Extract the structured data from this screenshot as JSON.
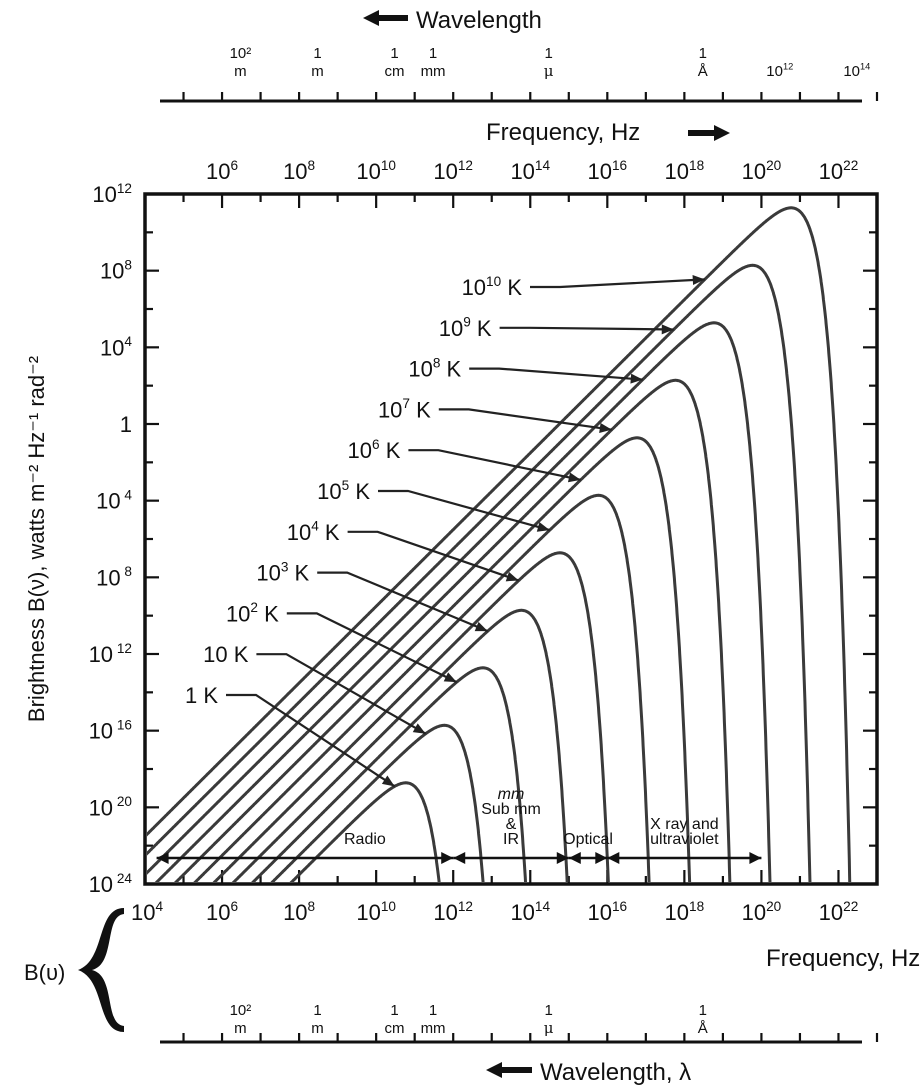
{
  "chart_data": {
    "type": "line",
    "title": "",
    "xlabel": "Frequency, Hz",
    "ylabel": "Brightness B(ν), watts m⁻² Hz⁻¹ rad⁻²",
    "xscale": "log",
    "yscale": "log",
    "xlim": [
      10000,
      1e+23
    ],
    "ylim": [
      1e-24,
      1000000000000.0
    ],
    "grid": false,
    "x_tick_labels": [
      {
        "base": "10",
        "exp": "4"
      },
      {
        "base": "10",
        "exp": "6"
      },
      {
        "base": "10",
        "exp": "8"
      },
      {
        "base": "10",
        "exp": "10"
      },
      {
        "base": "10",
        "exp": "12"
      },
      {
        "base": "10",
        "exp": "14"
      },
      {
        "base": "10",
        "exp": "16"
      },
      {
        "base": "10",
        "exp": "18"
      },
      {
        "base": "10",
        "exp": "20"
      },
      {
        "base": "10",
        "exp": "22"
      }
    ],
    "y_tick_labels": [
      {
        "base": "10",
        "exp": "12"
      },
      {
        "base": "10",
        "exp": "8"
      },
      {
        "base": "10",
        "exp": "4"
      },
      {
        "base": "1",
        "exp": ""
      },
      {
        "base": "10",
        "exp": " 4"
      },
      {
        "base": "10",
        "exp": " 8"
      },
      {
        "base": "10",
        "exp": " 12"
      },
      {
        "base": "10",
        "exp": " 16"
      },
      {
        "base": "10",
        "exp": " 20"
      },
      {
        "base": "10",
        "exp": " 24"
      }
    ],
    "series": [
      {
        "name": "1 K",
        "label": {
          "base": "1",
          "exp": "",
          "unit": " K"
        },
        "temperature_K": 1,
        "peak": {
          "x": 59000000000.0,
          "y": 4.2e-21
        }
      },
      {
        "name": "10 K",
        "label": {
          "base": "10",
          "exp": "",
          "unit": " K"
        },
        "temperature_K": 10,
        "peak": {
          "x": 590000000000.0,
          "y": 4.2e-18
        }
      },
      {
        "name": "10² K",
        "label": {
          "base": "10",
          "exp": "2",
          "unit": " K"
        },
        "temperature_K": 100,
        "peak": {
          "x": 5900000000000.0,
          "y": 4.2e-15
        }
      },
      {
        "name": "10³ K",
        "label": {
          "base": "10",
          "exp": "3",
          "unit": " K"
        },
        "temperature_K": 1000,
        "peak": {
          "x": 59000000000000.0,
          "y": 4.2e-12
        }
      },
      {
        "name": "10⁴ K",
        "label": {
          "base": "10",
          "exp": "4",
          "unit": " K"
        },
        "temperature_K": 10000,
        "peak": {
          "x": 590000000000000.0,
          "y": 4.2e-09
        }
      },
      {
        "name": "10⁵ K",
        "label": {
          "base": "10",
          "exp": "5",
          "unit": " K"
        },
        "temperature_K": 100000,
        "peak": {
          "x": 5900000000000000.0,
          "y": 4.2e-06
        }
      },
      {
        "name": "10⁶ K",
        "label": {
          "base": "10",
          "exp": "6",
          "unit": " K"
        },
        "temperature_K": 1000000,
        "peak": {
          "x": 5.9e+16,
          "y": 0.0042
        }
      },
      {
        "name": "10⁷ K",
        "label": {
          "base": "10",
          "exp": "7",
          "unit": " K"
        },
        "temperature_K": 10000000,
        "peak": {
          "x": 5.9e+17,
          "y": 4.2
        }
      },
      {
        "name": "10⁸ K",
        "label": {
          "base": "10",
          "exp": "8",
          "unit": " K"
        },
        "temperature_K": 100000000,
        "peak": {
          "x": 5.9e+18,
          "y": 4200
        }
      },
      {
        "name": "10⁹ K",
        "label": {
          "base": "10",
          "exp": "9",
          "unit": " K"
        },
        "temperature_K": 1000000000,
        "peak": {
          "x": 5.9e+19,
          "y": 4200000
        }
      },
      {
        "name": "10¹⁰ K",
        "label": {
          "base": "10",
          "exp": "10",
          "unit": " K"
        },
        "temperature_K": 10000000000,
        "peak": {
          "x": 5.9e+20,
          "y": 4200000000
        }
      }
    ],
    "bands": [
      {
        "lines": [
          "Radio"
        ],
        "x_range": [
          20000.0,
          1000000000000.0
        ]
      },
      {
        "lines": [
          "mm",
          "Sub mm",
          "&",
          "IR"
        ],
        "x_range": [
          1000000000000.0,
          1000000000000000.0
        ]
      },
      {
        "lines": [
          "Optical"
        ],
        "x_range": [
          1000000000000000.0,
          1e+16
        ]
      },
      {
        "lines": [
          "X ray and",
          "ultraviolet"
        ],
        "x_range": [
          1e+16,
          1e+20
        ]
      }
    ]
  },
  "top_axis": {
    "title": "Wavelength",
    "freq_title": "Frequency, Hz",
    "wavelength_labels": [
      {
        "top": "10²",
        "bottom": "m",
        "freq": 3000000
      },
      {
        "top": "1",
        "bottom": "m",
        "freq": 300000000
      },
      {
        "top": "1",
        "bottom": "cm",
        "freq": 30000000000
      },
      {
        "top": "1",
        "bottom": "mm",
        "freq": 300000000000
      },
      {
        "top": "1",
        "bottom": "μ",
        "freq": 300000000000000
      },
      {
        "top": "1",
        "bottom": "Å",
        "freq": 3e+18
      }
    ],
    "extra_labels": [
      {
        "base": "10",
        "exp": "12",
        "freq": 3e+20
      },
      {
        "base": "10",
        "exp": "14",
        "freq": 3e+22
      }
    ]
  },
  "bottom_axis": {
    "bracket_label": "B(υ)",
    "freq_title": "Frequency, Hz",
    "title": "Wavelength, λ",
    "wavelength_labels": [
      {
        "top": "10²",
        "bottom": "m",
        "freq": 3000000
      },
      {
        "top": "1",
        "bottom": "m",
        "freq": 300000000
      },
      {
        "top": "1",
        "bottom": "cm",
        "freq": 30000000000
      },
      {
        "top": "1",
        "bottom": "mm",
        "freq": 300000000000
      },
      {
        "top": "1",
        "bottom": "μ",
        "freq": 300000000000000
      },
      {
        "top": "1",
        "bottom": "Å",
        "freq": 3e+18
      }
    ]
  }
}
